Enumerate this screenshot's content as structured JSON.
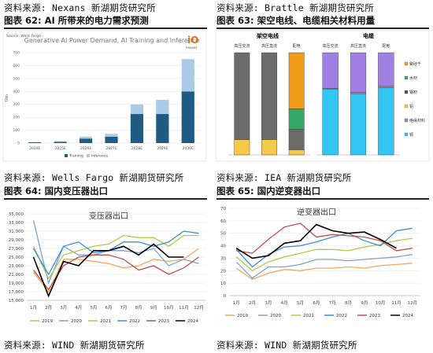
{
  "panels": {
    "tl": {
      "source": "资料来源: Nexans 新湖期货研究所",
      "title": "图表 62: AI 所带来的电力需求预测"
    },
    "tr": {
      "source": "资料来源: Brattle 新湖期货研究所",
      "title": "图表 63: 架空电线、电缆相关材料用量"
    },
    "bl": {
      "source": "资料来源: Wells Fargo 新湖期货研究所",
      "title": "图表 64: 国内变压器出口"
    },
    "br": {
      "source": "资料来源: IEA 新湖期货研究所",
      "title": "图表 65: 国内逆变器出口"
    },
    "bottom_left": {
      "source": "资料来源: WIND 新湖期货研究所"
    },
    "bottom_right": {
      "source": "资料来源: WIND 新湖期货研究所"
    }
  },
  "ai_chart_extra": {
    "source_label": "Source: Wells Fargo",
    "logo_text": "nexans"
  },
  "chart_data": [
    {
      "id": "ai",
      "type": "bar",
      "title": "Generative AI Power Demand, AI Training and Inference",
      "ylabel": "TWh",
      "ylim": [
        0,
        700
      ],
      "yticks": [
        0,
        100,
        200,
        300,
        400,
        500,
        600,
        700
      ],
      "grid": true,
      "legend": "bottom-left",
      "categories": [
        "2024E",
        "2025E",
        "2026E",
        "2027E",
        "2028E",
        "2029E",
        "2030E"
      ],
      "series": [
        {
          "name": "Training",
          "color": "#1f5b82",
          "values": [
            6,
            10,
            35,
            50,
            225,
            225,
            400
          ]
        },
        {
          "name": "Inference",
          "color": "#a9cbe8",
          "values": [
            2,
            5,
            15,
            22,
            75,
            110,
            250
          ]
        }
      ]
    },
    {
      "id": "overhead",
      "type": "bar",
      "title": "架空电线",
      "categories": [
        "高压交流",
        "高压直流",
        "配电"
      ],
      "ylim": [
        0,
        100
      ],
      "series": [
        {
          "name": "钢",
          "color": "#f5c94a",
          "values": [
            15,
            15,
            5
          ]
        },
        {
          "name": "铝",
          "color": "#6b6b6b",
          "values": [
            85,
            85,
            20
          ]
        },
        {
          "name": "绝缘材料",
          "color": "#35a867",
          "values": [
            0,
            0,
            20
          ]
        },
        {
          "name": "木材",
          "color": "#f39c19",
          "values": [
            0,
            0,
            55
          ]
        }
      ]
    },
    {
      "id": "cable",
      "type": "bar",
      "title": "电缆",
      "categories": [
        "高压交流",
        "高压直流",
        "配电"
      ],
      "ylim": [
        0,
        100
      ],
      "series": [
        {
          "name": "铜",
          "color": "#34c6f2",
          "values": [
            64,
            60,
            66
          ]
        },
        {
          "name": "铝",
          "color": "#9e9e9e",
          "values": [
            1,
            1,
            1
          ]
        },
        {
          "name": "聚乙烯",
          "color": "#a27fe3",
          "values": [
            35,
            39,
            33
          ]
        }
      ],
      "legend": [
        "聚硅千",
        "木材",
        "钢材",
        "铝",
        "绝缘材料",
        "铜"
      ],
      "legend_colors": [
        "#f39c19",
        "#35a867",
        "#555555",
        "#f5c94a",
        "#a27fe3",
        "#34c6f2"
      ]
    },
    {
      "id": "transformer",
      "type": "line",
      "title": "变压器出口",
      "x": [
        "1月",
        "2月",
        "3月",
        "4月",
        "5月",
        "6月",
        "7月",
        "8月",
        "9月",
        "10月",
        "11月",
        "12月"
      ],
      "ylim": [
        15000,
        35000
      ],
      "yticks": [
        15000,
        17000,
        19000,
        21000,
        23000,
        25000,
        27000,
        29000,
        31000,
        33000,
        35000
      ],
      "series": [
        {
          "name": "2019",
          "color": "#f0a860",
          "values": [
            21500,
            17000,
            24500,
            24500,
            24000,
            23500,
            22500,
            23000,
            24500,
            24000,
            24500,
            27000
          ]
        },
        {
          "name": "2020",
          "color": "#7f9fd6",
          "values": [
            33500,
            19000,
            27500,
            25500,
            25500,
            26500,
            26500,
            26000,
            27000,
            23000,
            24500,
            23500
          ]
        },
        {
          "name": "2021",
          "color": "#b0c84c",
          "values": [
            27500,
            20000,
            25500,
            26500,
            27500,
            28000,
            30000,
            29500,
            29500,
            27500,
            30000,
            30000
          ]
        },
        {
          "name": "2022",
          "color": "#3a8fd6",
          "values": [
            27000,
            21000,
            27500,
            28500,
            26000,
            26500,
            28500,
            28500,
            27500,
            28500,
            31000,
            30500
          ]
        },
        {
          "name": "2023",
          "color": "#c0504d",
          "values": [
            22000,
            17500,
            23000,
            25000,
            25500,
            25500,
            24500,
            22000,
            23000,
            21000,
            22500,
            25000
          ]
        },
        {
          "name": "2024",
          "color": "#000000",
          "values": [
            25000,
            16000,
            24000,
            23000,
            26500,
            26500,
            27500,
            25500,
            28000,
            25000,
            25000,
            null
          ]
        }
      ]
    },
    {
      "id": "inverter",
      "type": "line",
      "title": "逆变器出口",
      "x": [
        "1月",
        "2月",
        "3月",
        "4月",
        "5月",
        "6月",
        "7月",
        "8月",
        "9月",
        "10月",
        "11月",
        "12月"
      ],
      "ylim": [
        0,
        70
      ],
      "yticks": [
        0,
        10,
        20,
        30,
        40,
        50,
        60,
        70
      ],
      "series": [
        {
          "name": "2019",
          "color": "#f0a860",
          "values": [
            22,
            13,
            18,
            21,
            20,
            22,
            22,
            23,
            22,
            24,
            25,
            26
          ]
        },
        {
          "name": "2020",
          "color": "#7f9fd6",
          "values": [
            27,
            14,
            23,
            23,
            25,
            29,
            29,
            28,
            29,
            30,
            31,
            33
          ]
        },
        {
          "name": "2021",
          "color": "#b0c84c",
          "values": [
            31,
            20,
            27,
            31,
            34,
            37,
            37,
            36,
            39,
            41,
            44,
            46
          ]
        },
        {
          "name": "2022",
          "color": "#3a8fd6",
          "values": [
            37,
            23,
            33,
            39,
            40,
            43,
            47,
            50,
            44,
            40,
            52,
            54
          ]
        },
        {
          "name": "2023",
          "color": "#c0504d",
          "values": [
            36,
            34,
            45,
            55,
            58,
            47,
            49,
            48,
            47,
            44,
            36,
            38
          ]
        },
        {
          "name": "2024",
          "color": "#000000",
          "values": [
            38,
            30,
            32,
            42,
            44,
            57,
            52,
            50,
            51,
            45,
            38,
            null
          ]
        }
      ]
    }
  ]
}
